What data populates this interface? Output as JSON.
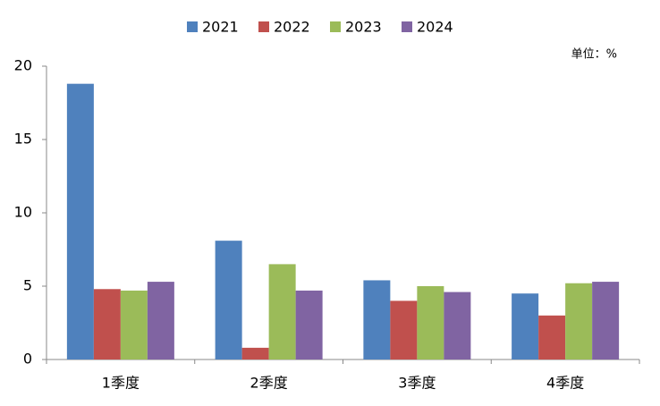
{
  "chart_data": {
    "type": "bar",
    "unit": "单位：%",
    "categories": [
      "1季度",
      "2季度",
      "3季度",
      "4季度"
    ],
    "series": [
      {
        "name": "2021",
        "color": "#4f81bd",
        "values": [
          18.8,
          8.1,
          5.4,
          4.5
        ]
      },
      {
        "name": "2022",
        "color": "#c0504d",
        "values": [
          4.8,
          0.8,
          4.0,
          3.0
        ]
      },
      {
        "name": "2023",
        "color": "#9bbb59",
        "values": [
          4.7,
          6.5,
          5.0,
          5.2
        ]
      },
      {
        "name": "2024",
        "color": "#8064a2",
        "values": [
          5.3,
          4.7,
          4.6,
          5.3
        ]
      }
    ],
    "ylim": [
      0,
      20
    ],
    "yticks": [
      0,
      5,
      10,
      15,
      20
    ],
    "grid": false
  }
}
